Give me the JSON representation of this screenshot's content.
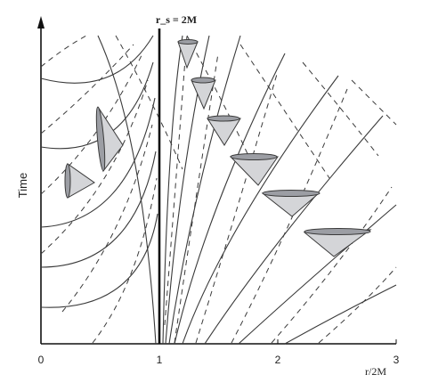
{
  "diagram": {
    "top_label": "r_s = 2M",
    "y_axis_label": "Time",
    "x_axis_label": "r/2M",
    "x_ticks": [
      "0",
      "1",
      "2",
      "3"
    ],
    "colors": {
      "stroke": "#3a3a3a",
      "axis": "#111111",
      "cone_fill": "#d4d5d8",
      "cone_rim": "#7d7f86",
      "dashed": "#3a3a3a"
    }
  },
  "chart_data": {
    "type": "diagram",
    "x_axis": {
      "label": "r/2M",
      "ticks": [
        0,
        1,
        2,
        3
      ],
      "range": [
        0,
        3
      ]
    },
    "y_axis": {
      "label": "Time"
    },
    "annotations": [
      "r_s = 2M"
    ]
  }
}
